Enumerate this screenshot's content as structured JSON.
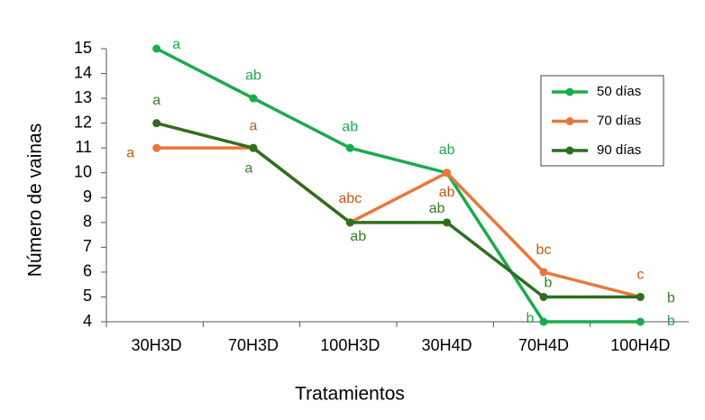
{
  "chart_data": {
    "type": "line",
    "x_label": "Tratamientos",
    "y_label": "Número de vainas",
    "categories": [
      "30H3D",
      "70H3D",
      "100H3D",
      "30H4D",
      "70H4D",
      "100H4D"
    ],
    "ylim": [
      4,
      15
    ],
    "yticks": [
      4,
      5,
      6,
      7,
      8,
      9,
      10,
      11,
      12,
      13,
      14,
      15
    ],
    "legend": "upper right",
    "series": [
      {
        "name": "50 días",
        "color": "#1aab4b",
        "label_color": "#1aab4b",
        "values": [
          15,
          13,
          11,
          10,
          4,
          4
        ],
        "letters": [
          "a",
          "ab",
          "ab",
          "ab",
          "b",
          "b"
        ]
      },
      {
        "name": "70 días",
        "color": "#e8773a",
        "label_color": "#c55a11",
        "values": [
          11,
          11,
          8,
          10,
          6,
          5
        ],
        "letters": [
          "a",
          "a",
          "abc",
          "ab",
          "bc",
          "c"
        ]
      },
      {
        "name": "90 días",
        "color": "#2e6f1e",
        "label_color": "#3a7d22",
        "values": [
          12,
          11,
          8,
          8,
          5,
          5
        ],
        "letters": [
          "a",
          "a",
          "ab",
          "ab",
          "b",
          "b"
        ]
      }
    ]
  }
}
